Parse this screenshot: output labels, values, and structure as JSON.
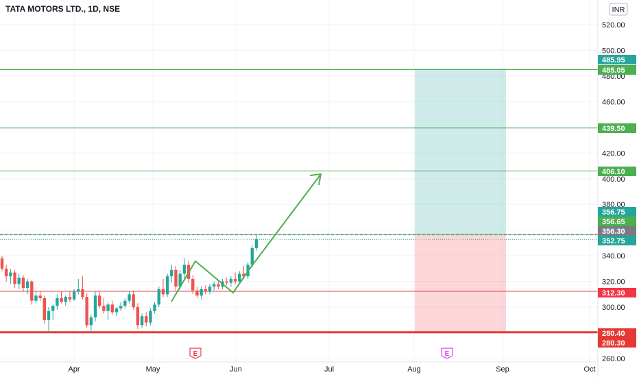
{
  "header": {
    "title": "TATA MOTORS LTD., 1D, NSE",
    "currency": "INR"
  },
  "chart_data": {
    "type": "candlestick",
    "title": "TATA MOTORS LTD., 1D, NSE",
    "currency": "INR",
    "y_ticks": [
      "520.00",
      "500.00",
      "480.00",
      "460.00",
      "440.00",
      "420.00",
      "400.00",
      "380.00",
      "360.00",
      "340.00",
      "320.00",
      "300.00",
      "280.00",
      "260.00"
    ],
    "y_tick_values": [
      520,
      500,
      480,
      460,
      440,
      420,
      400,
      380,
      360,
      340,
      320,
      300,
      280,
      260
    ],
    "x_ticks": [
      "Apr",
      "May",
      "Jun",
      "Jul",
      "Aug",
      "Sep",
      "Oct"
    ],
    "ylim": [
      256,
      535
    ],
    "grid": true,
    "horizontal_levels": [
      {
        "value": 485.05,
        "label": "485.05",
        "color": "#4caf50"
      },
      {
        "value": 439.5,
        "label": "439.50",
        "color": "#4caf50"
      },
      {
        "value": 406.1,
        "label": "406.10",
        "color": "#4caf50"
      },
      {
        "value": 356.65,
        "label": "356.65",
        "color": "#4caf50"
      },
      {
        "value": 312.3,
        "label": "312.30",
        "color": "#f23645"
      },
      {
        "value": 280.4,
        "label": "280.40",
        "color": "#e53935"
      }
    ],
    "price_tags": [
      {
        "value": 485.95,
        "label": "485.95",
        "color": "#26a69a"
      },
      {
        "value": 356.75,
        "label": "356.75",
        "color": "#26a69a"
      },
      {
        "value": 356.3,
        "label": "356.30",
        "color": "#787b86"
      },
      {
        "value": 352.75,
        "label": "352.75",
        "color": "#26a69a"
      },
      {
        "value": 280.3,
        "label": "280.30",
        "color": "#e53935"
      }
    ],
    "position": {
      "entry": 356.3,
      "target": 485.95,
      "stop": 280.3
    },
    "event_markers": [
      "E",
      "E"
    ],
    "candles": [
      {
        "o": 338,
        "h": 340,
        "l": 328,
        "c": 330
      },
      {
        "o": 330,
        "h": 333,
        "l": 320,
        "c": 324
      },
      {
        "o": 324,
        "h": 330,
        "l": 318,
        "c": 327
      },
      {
        "o": 327,
        "h": 329,
        "l": 315,
        "c": 318
      },
      {
        "o": 318,
        "h": 326,
        "l": 314,
        "c": 323
      },
      {
        "o": 323,
        "h": 325,
        "l": 312,
        "c": 315
      },
      {
        "o": 315,
        "h": 322,
        "l": 310,
        "c": 320
      },
      {
        "o": 320,
        "h": 321,
        "l": 302,
        "c": 305
      },
      {
        "o": 305,
        "h": 312,
        "l": 303,
        "c": 309
      },
      {
        "o": 309,
        "h": 312,
        "l": 305,
        "c": 307
      },
      {
        "o": 307,
        "h": 309,
        "l": 287,
        "c": 290
      },
      {
        "o": 290,
        "h": 300,
        "l": 281,
        "c": 297
      },
      {
        "o": 297,
        "h": 302,
        "l": 290,
        "c": 301
      },
      {
        "o": 301,
        "h": 310,
        "l": 298,
        "c": 307
      },
      {
        "o": 307,
        "h": 312,
        "l": 303,
        "c": 304
      },
      {
        "o": 304,
        "h": 309,
        "l": 301,
        "c": 308
      },
      {
        "o": 308,
        "h": 312,
        "l": 304,
        "c": 306
      },
      {
        "o": 306,
        "h": 314,
        "l": 305,
        "c": 312
      },
      {
        "o": 312,
        "h": 322,
        "l": 310,
        "c": 314
      },
      {
        "o": 314,
        "h": 324,
        "l": 306,
        "c": 308
      },
      {
        "o": 308,
        "h": 311,
        "l": 284,
        "c": 286
      },
      {
        "o": 286,
        "h": 294,
        "l": 280,
        "c": 292
      },
      {
        "o": 292,
        "h": 312,
        "l": 289,
        "c": 309
      },
      {
        "o": 309,
        "h": 312,
        "l": 299,
        "c": 301
      },
      {
        "o": 301,
        "h": 307,
        "l": 295,
        "c": 297
      },
      {
        "o": 297,
        "h": 304,
        "l": 290,
        "c": 302
      },
      {
        "o": 302,
        "h": 305,
        "l": 294,
        "c": 296
      },
      {
        "o": 296,
        "h": 300,
        "l": 293,
        "c": 299
      },
      {
        "o": 299,
        "h": 304,
        "l": 297,
        "c": 301
      },
      {
        "o": 301,
        "h": 307,
        "l": 299,
        "c": 305
      },
      {
        "o": 305,
        "h": 312,
        "l": 303,
        "c": 310
      },
      {
        "o": 310,
        "h": 313,
        "l": 298,
        "c": 300
      },
      {
        "o": 300,
        "h": 303,
        "l": 283,
        "c": 286
      },
      {
        "o": 286,
        "h": 295,
        "l": 284,
        "c": 293
      },
      {
        "o": 293,
        "h": 296,
        "l": 285,
        "c": 288
      },
      {
        "o": 288,
        "h": 299,
        "l": 286,
        "c": 297
      },
      {
        "o": 297,
        "h": 304,
        "l": 295,
        "c": 302
      },
      {
        "o": 302,
        "h": 316,
        "l": 300,
        "c": 314
      },
      {
        "o": 314,
        "h": 322,
        "l": 308,
        "c": 310
      },
      {
        "o": 310,
        "h": 326,
        "l": 308,
        "c": 324
      },
      {
        "o": 324,
        "h": 333,
        "l": 319,
        "c": 329
      },
      {
        "o": 329,
        "h": 332,
        "l": 313,
        "c": 316
      },
      {
        "o": 316,
        "h": 329,
        "l": 314,
        "c": 326
      },
      {
        "o": 326,
        "h": 338,
        "l": 322,
        "c": 333
      },
      {
        "o": 333,
        "h": 336,
        "l": 319,
        "c": 322
      },
      {
        "o": 322,
        "h": 325,
        "l": 310,
        "c": 313
      },
      {
        "o": 313,
        "h": 316,
        "l": 307,
        "c": 309
      },
      {
        "o": 309,
        "h": 316,
        "l": 306,
        "c": 314
      },
      {
        "o": 314,
        "h": 317,
        "l": 310,
        "c": 312
      },
      {
        "o": 312,
        "h": 318,
        "l": 310,
        "c": 316
      },
      {
        "o": 316,
        "h": 320,
        "l": 313,
        "c": 318
      },
      {
        "o": 318,
        "h": 320,
        "l": 314,
        "c": 316
      },
      {
        "o": 316,
        "h": 322,
        "l": 314,
        "c": 320
      },
      {
        "o": 320,
        "h": 323,
        "l": 317,
        "c": 319
      },
      {
        "o": 319,
        "h": 324,
        "l": 316,
        "c": 322
      },
      {
        "o": 322,
        "h": 327,
        "l": 318,
        "c": 320
      },
      {
        "o": 320,
        "h": 328,
        "l": 318,
        "c": 326
      },
      {
        "o": 326,
        "h": 332,
        "l": 322,
        "c": 324
      },
      {
        "o": 324,
        "h": 335,
        "l": 322,
        "c": 333
      },
      {
        "o": 333,
        "h": 348,
        "l": 331,
        "c": 346
      },
      {
        "o": 346,
        "h": 356,
        "l": 344,
        "c": 353
      }
    ]
  }
}
